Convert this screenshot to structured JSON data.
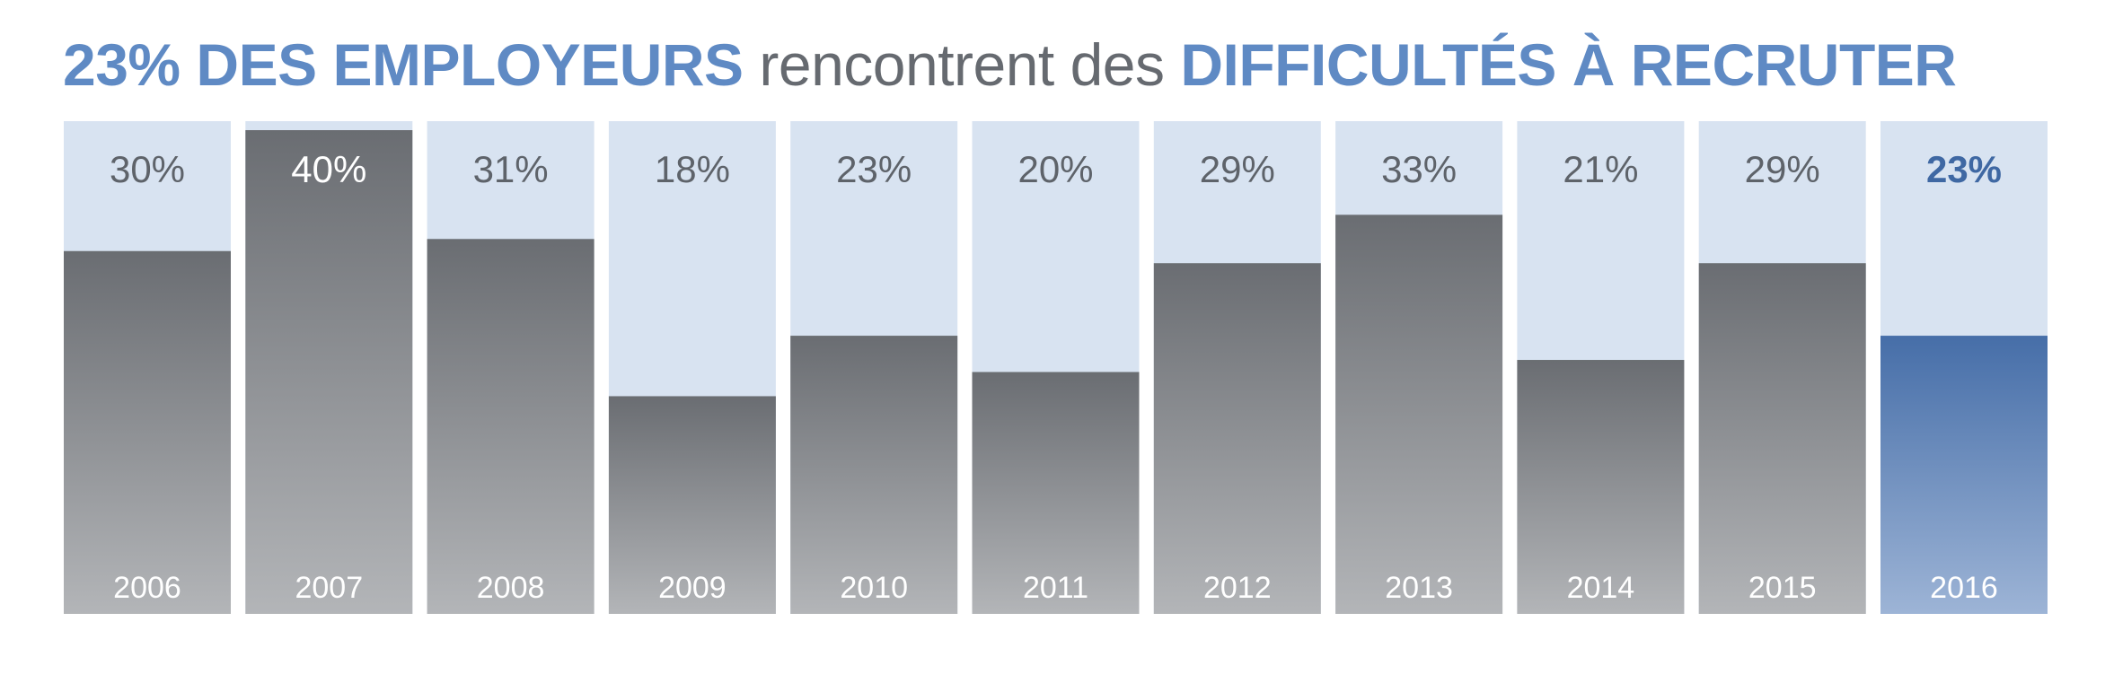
{
  "title": {
    "part1": "23% DES EMPLOYEURS",
    "part2": "rencontrent des",
    "part3": "DIFFICULTÉS À RECRUTER"
  },
  "colors": {
    "accent": "#5f8ac4",
    "track": "#d8e3f1",
    "bar_top": "#6a6d72",
    "bar_bottom": "#b3b5b8",
    "highlight_top": "#466ea8",
    "highlight_bottom": "#9db4d6",
    "label_dark": "#5e636a",
    "label_highlight": "#3f68a3"
  },
  "chart_data": {
    "type": "bar",
    "categories": [
      "2006",
      "2007",
      "2008",
      "2009",
      "2010",
      "2011",
      "2012",
      "2013",
      "2014",
      "2015",
      "2016"
    ],
    "values": [
      30,
      40,
      31,
      18,
      23,
      20,
      29,
      33,
      21,
      29,
      23
    ],
    "value_labels": [
      "30%",
      "40%",
      "31%",
      "18%",
      "23%",
      "20%",
      "29%",
      "33%",
      "21%",
      "29%",
      "23%"
    ],
    "highlight_index": 10,
    "ylim": [
      0,
      40
    ],
    "grid": false
  }
}
